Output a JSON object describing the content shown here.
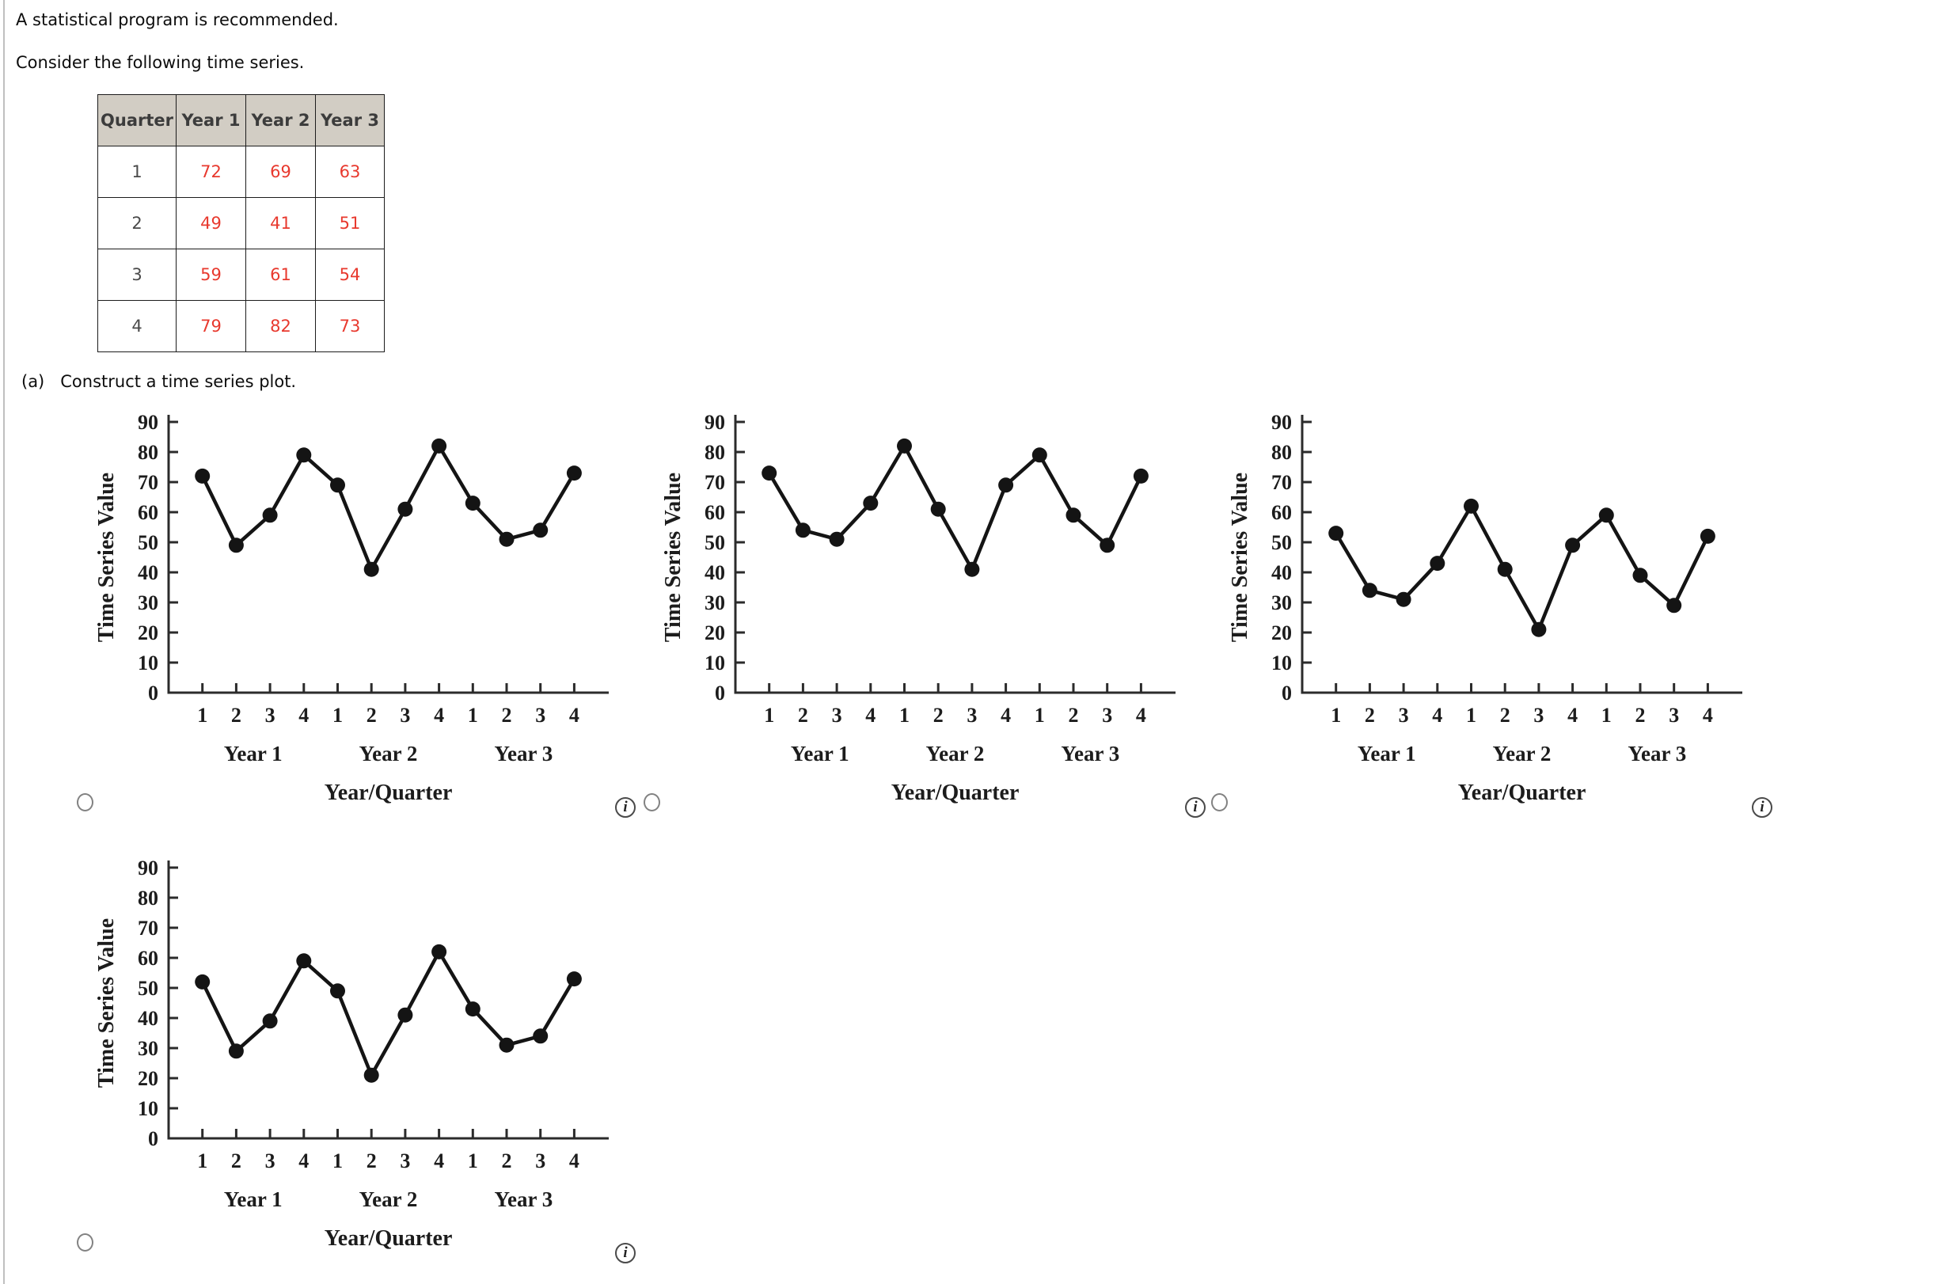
{
  "page": {
    "line1": "A statistical program is recommended.",
    "line2": "Consider the following time series.",
    "question_label": "(a)",
    "question_text": "Construct a time series plot."
  },
  "table": {
    "headers": [
      "Quarter",
      "Year 1",
      "Year 2",
      "Year 3"
    ],
    "rows": [
      {
        "quarter": "1",
        "values": [
          "72",
          "69",
          "63"
        ]
      },
      {
        "quarter": "2",
        "values": [
          "49",
          "41",
          "51"
        ]
      },
      {
        "quarter": "3",
        "values": [
          "59",
          "61",
          "54"
        ]
      },
      {
        "quarter": "4",
        "values": [
          "79",
          "82",
          "73"
        ]
      }
    ],
    "value_color": "#e8392e",
    "header_bg": "#d2cdc4"
  },
  "icons": {
    "info_glyph": "i"
  },
  "options": [
    {
      "id": 1,
      "selected": false
    },
    {
      "id": 2,
      "selected": false
    },
    {
      "id": 3,
      "selected": false
    },
    {
      "id": 4,
      "selected": false
    }
  ],
  "chart_data": [
    {
      "type": "line",
      "option": 1,
      "title": "",
      "ylabel": "Time Series Value",
      "xlabel": "Year/Quarter",
      "ylim": [
        0,
        90
      ],
      "yticks": [
        0,
        10,
        20,
        30,
        40,
        50,
        60,
        70,
        80,
        90
      ],
      "x_tick_labels": [
        "1",
        "2",
        "3",
        "4",
        "1",
        "2",
        "3",
        "4",
        "1",
        "2",
        "3",
        "4"
      ],
      "year_labels": [
        "Year 1",
        "Year 2",
        "Year 3"
      ],
      "values": [
        72,
        49,
        59,
        79,
        69,
        41,
        61,
        82,
        63,
        51,
        54,
        73
      ]
    },
    {
      "type": "line",
      "option": 2,
      "title": "",
      "ylabel": "Time Series Value",
      "xlabel": "Year/Quarter",
      "ylim": [
        0,
        90
      ],
      "yticks": [
        0,
        10,
        20,
        30,
        40,
        50,
        60,
        70,
        80,
        90
      ],
      "x_tick_labels": [
        "1",
        "2",
        "3",
        "4",
        "1",
        "2",
        "3",
        "4",
        "1",
        "2",
        "3",
        "4"
      ],
      "year_labels": [
        "Year 1",
        "Year 2",
        "Year 3"
      ],
      "values": [
        73,
        54,
        51,
        63,
        82,
        61,
        41,
        69,
        79,
        59,
        49,
        72
      ]
    },
    {
      "type": "line",
      "option": 3,
      "title": "",
      "ylabel": "Time Series Value",
      "xlabel": "Year/Quarter",
      "ylim": [
        0,
        90
      ],
      "yticks": [
        0,
        10,
        20,
        30,
        40,
        50,
        60,
        70,
        80,
        90
      ],
      "x_tick_labels": [
        "1",
        "2",
        "3",
        "4",
        "1",
        "2",
        "3",
        "4",
        "1",
        "2",
        "3",
        "4"
      ],
      "year_labels": [
        "Year 1",
        "Year 2",
        "Year 3"
      ],
      "values": [
        53,
        34,
        31,
        43,
        62,
        41,
        21,
        49,
        59,
        39,
        29,
        52
      ]
    },
    {
      "type": "line",
      "option": 4,
      "title": "",
      "ylabel": "Time Series Value",
      "xlabel": "Year/Quarter",
      "ylim": [
        0,
        90
      ],
      "yticks": [
        0,
        10,
        20,
        30,
        40,
        50,
        60,
        70,
        80,
        90
      ],
      "x_tick_labels": [
        "1",
        "2",
        "3",
        "4",
        "1",
        "2",
        "3",
        "4",
        "1",
        "2",
        "3",
        "4"
      ],
      "year_labels": [
        "Year 1",
        "Year 2",
        "Year 3"
      ],
      "values": [
        52,
        29,
        39,
        59,
        49,
        21,
        41,
        62,
        43,
        31,
        34,
        53
      ]
    }
  ]
}
